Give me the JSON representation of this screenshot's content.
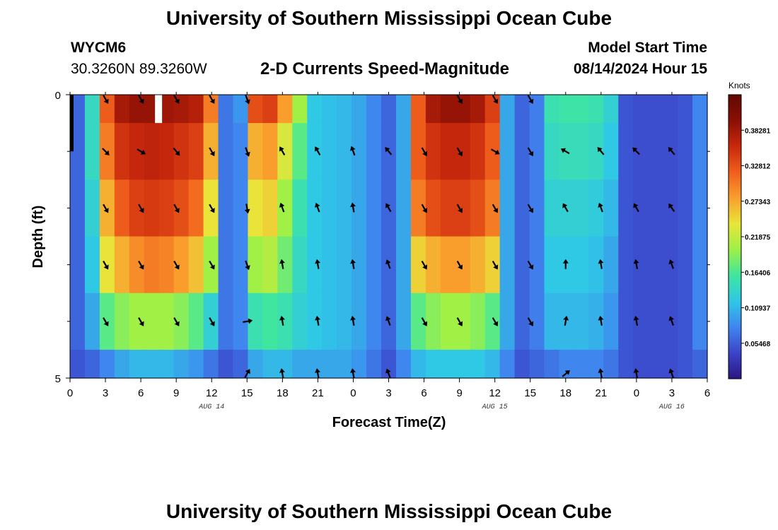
{
  "header": {
    "title": "University of Southern Mississippi Ocean Cube",
    "station_id": "WYCM6",
    "coords": "30.3260N  89.3260W",
    "subtitle": "2-D Currents Speed-Magnitude",
    "start_label": "Model Start Time",
    "start_value": "08/14/2024 Hour 15"
  },
  "footer": {
    "title": "University of Southern Mississippi Ocean Cube"
  },
  "colors": {
    "arrow": "#000000",
    "frame": "#000000",
    "missing": "#ffffff"
  },
  "chart_data": {
    "type": "heatmap",
    "title": "2-D Currents Speed-Magnitude",
    "xlabel": "Forecast Time(Z)",
    "ylabel": "Depth (ft)",
    "x_hours_range": [
      0,
      54
    ],
    "y_range": [
      0,
      5
    ],
    "x_tick_labels": [
      "0",
      "3",
      "6",
      "9",
      "12",
      "15",
      "18",
      "21",
      "0",
      "3",
      "6",
      "9",
      "12",
      "15",
      "18",
      "21",
      "0",
      "3",
      "6"
    ],
    "y_tick_labels": [
      "0",
      "5"
    ],
    "y_minor_ticks": [
      1,
      2,
      3,
      4
    ],
    "date_labels": [
      {
        "text": "AUG 14",
        "hour": 12
      },
      {
        "text": "AUG 15",
        "hour": 36
      },
      {
        "text": "AUG 16",
        "hour": 51
      }
    ],
    "colorbar": {
      "unit": "Knots",
      "min": 0.0,
      "max": 0.4375,
      "tick_labels": [
        "0.05468",
        "0.10937",
        "0.16406",
        "0.21875",
        "0.27343",
        "0.32812",
        "0.38281"
      ],
      "tick_values": [
        0.05468,
        0.10937,
        0.16406,
        0.21875,
        0.27343,
        0.32812,
        0.38281
      ],
      "stops": [
        "#2a1780",
        "#3b44c8",
        "#3f86ef",
        "#2fc7e6",
        "#3fe6a0",
        "#9ef046",
        "#e8e53a",
        "#f9a02e",
        "#f05e1c",
        "#c8280c",
        "#8a0f05",
        "#620802"
      ]
    },
    "layers": [
      0,
      1,
      2,
      3,
      4
    ],
    "speed_profile": [
      [
        0.06,
        0.14,
        0.32,
        0.38,
        0.39,
        0.39,
        0.385,
        0.38,
        0.37,
        0.3,
        0.07,
        0.09,
        0.33,
        0.34,
        0.28,
        0.2,
        0.12,
        0.115,
        0.11,
        0.1,
        0.08,
        0.06,
        0.1,
        0.32,
        0.38,
        0.39,
        0.39,
        0.38,
        0.34,
        0.1,
        0.06,
        0.075,
        0.15,
        0.155,
        0.155,
        0.15,
        0.13,
        0.05,
        0.045,
        0.045,
        0.045,
        0.05,
        0.08
      ],
      [
        0.06,
        0.14,
        0.3,
        0.35,
        0.36,
        0.365,
        0.36,
        0.35,
        0.34,
        0.27,
        0.07,
        0.08,
        0.27,
        0.28,
        0.23,
        0.17,
        0.12,
        0.115,
        0.11,
        0.1,
        0.08,
        0.06,
        0.1,
        0.32,
        0.35,
        0.36,
        0.36,
        0.35,
        0.32,
        0.1,
        0.06,
        0.075,
        0.14,
        0.145,
        0.145,
        0.14,
        0.12,
        0.05,
        0.045,
        0.045,
        0.045,
        0.05,
        0.08
      ],
      [
        0.06,
        0.13,
        0.27,
        0.32,
        0.34,
        0.345,
        0.34,
        0.33,
        0.31,
        0.24,
        0.07,
        0.08,
        0.24,
        0.25,
        0.2,
        0.15,
        0.12,
        0.115,
        0.11,
        0.1,
        0.08,
        0.06,
        0.1,
        0.3,
        0.33,
        0.34,
        0.34,
        0.33,
        0.3,
        0.1,
        0.06,
        0.075,
        0.13,
        0.13,
        0.13,
        0.125,
        0.11,
        0.05,
        0.045,
        0.045,
        0.045,
        0.05,
        0.08
      ],
      [
        0.06,
        0.12,
        0.24,
        0.27,
        0.29,
        0.3,
        0.295,
        0.28,
        0.26,
        0.2,
        0.07,
        0.08,
        0.2,
        0.21,
        0.18,
        0.14,
        0.12,
        0.115,
        0.11,
        0.1,
        0.08,
        0.06,
        0.1,
        0.25,
        0.27,
        0.28,
        0.28,
        0.27,
        0.25,
        0.1,
        0.06,
        0.075,
        0.12,
        0.12,
        0.12,
        0.115,
        0.1,
        0.05,
        0.045,
        0.045,
        0.045,
        0.05,
        0.08
      ],
      [
        0.06,
        0.1,
        0.17,
        0.19,
        0.2,
        0.2,
        0.2,
        0.19,
        0.17,
        0.13,
        0.07,
        0.08,
        0.15,
        0.16,
        0.15,
        0.13,
        0.12,
        0.115,
        0.11,
        0.1,
        0.08,
        0.06,
        0.1,
        0.17,
        0.19,
        0.2,
        0.2,
        0.19,
        0.17,
        0.1,
        0.06,
        0.075,
        0.11,
        0.11,
        0.11,
        0.105,
        0.09,
        0.05,
        0.045,
        0.045,
        0.045,
        0.05,
        0.08
      ],
      [
        0.05,
        0.06,
        0.08,
        0.1,
        0.11,
        0.11,
        0.11,
        0.1,
        0.09,
        0.07,
        0.05,
        0.06,
        0.1,
        0.11,
        0.11,
        0.1,
        0.1,
        0.1,
        0.1,
        0.09,
        0.07,
        0.05,
        0.08,
        0.11,
        0.12,
        0.12,
        0.12,
        0.12,
        0.11,
        0.08,
        0.05,
        0.06,
        0.07,
        0.08,
        0.08,
        0.08,
        0.07,
        0.05,
        0.045,
        0.045,
        0.045,
        0.05,
        0.06
      ]
    ],
    "missing_data": [
      {
        "hour_start": 7.2,
        "hour_end": 7.8,
        "depth_start": 0,
        "depth_end": 0.5
      }
    ],
    "arrow_hours": [
      3,
      6,
      9,
      12,
      15,
      18,
      21,
      24,
      27,
      30,
      33,
      36,
      39,
      42,
      45,
      48,
      51
    ],
    "arrow_directions_deg": [
      [
        150,
        150,
        150,
        150,
        160,
        null,
        null,
        null,
        null,
        null,
        150,
        150,
        150,
        null,
        null,
        null,
        null
      ],
      [
        135,
        120,
        140,
        150,
        160,
        -30,
        -30,
        -20,
        -40,
        150,
        150,
        120,
        150,
        -60,
        -40,
        -45,
        -40
      ],
      [
        150,
        150,
        150,
        150,
        170,
        -20,
        -20,
        -10,
        -30,
        150,
        150,
        150,
        150,
        -30,
        -20,
        -30,
        -35
      ],
      [
        150,
        150,
        150,
        150,
        160,
        -10,
        -10,
        -10,
        -20,
        150,
        150,
        150,
        150,
        0,
        -10,
        -10,
        -20
      ],
      [
        150,
        150,
        150,
        150,
        80,
        -10,
        -10,
        -10,
        -20,
        150,
        150,
        150,
        150,
        10,
        -10,
        -10,
        -20
      ],
      [
        null,
        null,
        null,
        null,
        30,
        -10,
        -10,
        -10,
        -20,
        null,
        null,
        null,
        null,
        50,
        -10,
        -10,
        -20
      ]
    ]
  }
}
